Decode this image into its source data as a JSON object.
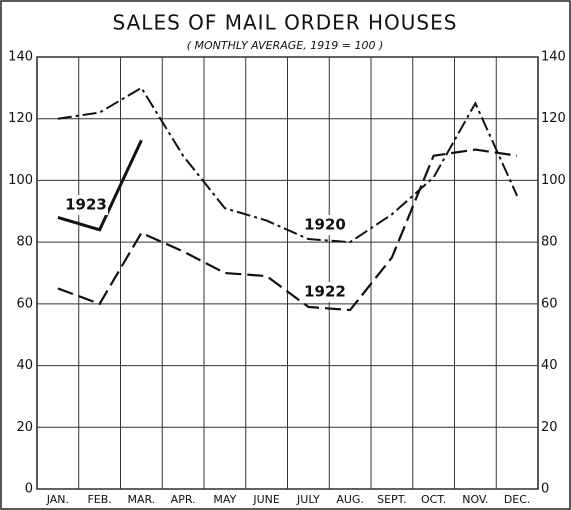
{
  "chart_data": {
    "type": "line",
    "title": "SALES OF MAIL ORDER HOUSES",
    "subtitle": "( MONTHLY AVERAGE, 1919 = 100 )",
    "categories": [
      "JAN.",
      "FEB.",
      "MAR.",
      "APR.",
      "MAY",
      "JUNE",
      "JULY",
      "AUG.",
      "SEPT.",
      "OCT.",
      "NOV.",
      "DEC."
    ],
    "series": [
      {
        "name": "1920",
        "color": "#111111",
        "dash": "dashdot",
        "values": [
          120,
          122,
          130,
          108,
          91,
          87,
          81,
          80,
          89,
          101,
          125,
          95
        ]
      },
      {
        "name": "1922",
        "color": "#111111",
        "dash": "dashed",
        "values": [
          65,
          60,
          83,
          77,
          70,
          69,
          59,
          58,
          75,
          108,
          110,
          108
        ]
      },
      {
        "name": "1923",
        "color": "#111111",
        "dash": "solid",
        "values": [
          88,
          84,
          113,
          null,
          null,
          null,
          null,
          null,
          null,
          null,
          null,
          null
        ]
      }
    ],
    "ylim": [
      0,
      140
    ],
    "yticks": [
      0,
      20,
      40,
      60,
      80,
      100,
      120,
      140
    ],
    "grid": true
  }
}
